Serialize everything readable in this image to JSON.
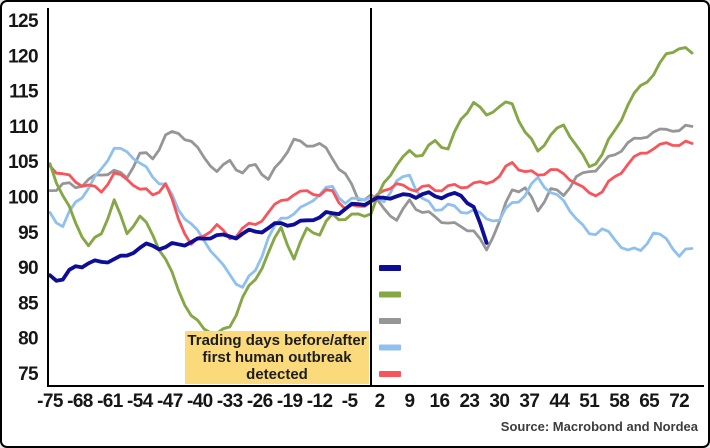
{
  "annotation": {
    "line1": "Trading days before/after",
    "line2": "first human outbreak",
    "line3": "detected"
  },
  "source_text": "Source: Macrobond and Nordea",
  "colors": {
    "background": "#ffffff",
    "axis": "#000000",
    "zero_line": "#000000",
    "annotation_bg": "#fbda7c",
    "annotation_text": "#1d1d1d",
    "tick_label": "#161616",
    "source_text": "#3d3d3d",
    "series_dark_blue": "#0d0d97",
    "series_green": "#86a746",
    "series_gray": "#969696",
    "series_light_blue": "#8fc0ee",
    "series_red": "#f7555b"
  },
  "chart_data": {
    "type": "line",
    "title": "",
    "xlabel": "",
    "ylabel": "",
    "xlim": [
      -77,
      77
    ],
    "ylim": [
      75,
      125
    ],
    "grid": false,
    "legend_position": "middle-right",
    "legend_labels": [
      "",
      "",
      "",
      "",
      ""
    ],
    "zero_line_x": 0,
    "noise_amplitude": 0.38,
    "xticks": [
      -75,
      -68,
      -61,
      -54,
      -47,
      -40,
      -33,
      -26,
      -19,
      -12,
      -5,
      2,
      9,
      16,
      23,
      30,
      37,
      44,
      51,
      58,
      65,
      72
    ],
    "yticks": [
      75,
      80,
      85,
      90,
      95,
      100,
      105,
      110,
      115,
      120,
      125
    ],
    "x": [
      -75,
      -72,
      -69,
      -66,
      -63,
      -60,
      -57,
      -54,
      -51,
      -48,
      -45,
      -42,
      -39,
      -36,
      -33,
      -30,
      -27,
      -24,
      -21,
      -18,
      -15,
      -12,
      -9,
      -6,
      -3,
      0,
      3,
      6,
      9,
      12,
      15,
      18,
      21,
      24,
      27,
      30,
      33,
      36,
      39,
      42,
      45,
      48,
      51,
      54,
      57,
      60,
      63,
      66,
      69,
      72,
      75
    ],
    "series": [
      {
        "name": "gray",
        "color_key": "series_gray",
        "width": 2.8,
        "values": [
          100.9,
          101.9,
          101.3,
          102.5,
          103.1,
          103.8,
          102.7,
          106.2,
          105.4,
          108.8,
          109.0,
          107.9,
          105.6,
          103.6,
          105.2,
          103.4,
          104.6,
          102.5,
          105.1,
          108.2,
          107.2,
          107.6,
          105.4,
          103.3,
          99.6,
          100.3,
          98.4,
          96.7,
          99.6,
          97.8,
          97.2,
          96.3,
          95.8,
          95.2,
          92.5,
          96.5,
          101.0,
          101.3,
          98.0,
          101.2,
          100.2,
          102.9,
          103.6,
          104.7,
          106.0,
          107.7,
          108.3,
          109.2,
          109.6,
          109.4,
          110.0
        ]
      },
      {
        "name": "light-blue",
        "color_key": "series_light_blue",
        "width": 2.8,
        "values": [
          97.8,
          95.8,
          99.3,
          101.2,
          104.0,
          106.9,
          106.4,
          104.8,
          102.8,
          101.8,
          98.2,
          96.2,
          93.8,
          91.4,
          89.0,
          87.2,
          89.6,
          94.2,
          97.0,
          97.6,
          99.0,
          100.3,
          101.5,
          99.1,
          99.8,
          100.0,
          99.3,
          102.3,
          103.1,
          99.8,
          98.1,
          99.0,
          97.8,
          98.2,
          96.9,
          96.7,
          99.2,
          100.2,
          102.8,
          100.6,
          99.5,
          96.9,
          94.8,
          95.5,
          93.9,
          92.5,
          92.4,
          94.9,
          94.1,
          91.6,
          92.7
        ]
      },
      {
        "name": "red",
        "color_key": "series_red",
        "width": 2.8,
        "values": [
          104.4,
          103.3,
          102.1,
          101.7,
          100.7,
          103.4,
          102.5,
          101.1,
          100.3,
          101.9,
          96.9,
          93.3,
          94.5,
          96.1,
          94.1,
          95.6,
          96.1,
          97.8,
          99.5,
          100.3,
          100.9,
          100.2,
          100.9,
          98.3,
          98.7,
          99.3,
          100.9,
          101.9,
          101.1,
          101.5,
          100.9,
          101.6,
          101.3,
          102.0,
          101.9,
          102.9,
          104.9,
          103.6,
          103.1,
          103.9,
          103.3,
          101.9,
          100.6,
          100.7,
          102.9,
          104.6,
          106.2,
          106.8,
          107.7,
          107.3,
          107.6
        ]
      },
      {
        "name": "green",
        "color_key": "series_green",
        "width": 2.9,
        "values": [
          104.7,
          100.2,
          96.3,
          93.1,
          94.8,
          99.6,
          94.8,
          97.3,
          94.6,
          91.2,
          86.8,
          83.2,
          81.3,
          80.7,
          81.6,
          85.8,
          88.3,
          92.1,
          95.7,
          91.2,
          95.6,
          94.6,
          97.6,
          96.8,
          97.6,
          97.6,
          102.0,
          104.5,
          106.6,
          105.9,
          108.0,
          106.8,
          111.0,
          113.4,
          111.6,
          112.8,
          113.2,
          109.2,
          106.5,
          108.8,
          110.2,
          107.3,
          104.3,
          106.0,
          109.5,
          113.0,
          115.8,
          117.3,
          120.3,
          121.0,
          120.4
        ]
      },
      {
        "name": "dark-blue",
        "color_key": "series_dark_blue",
        "width": 3.8,
        "values": [
          88.9,
          88.3,
          90.2,
          90.6,
          90.8,
          91.2,
          91.7,
          92.8,
          93.1,
          92.9,
          93.3,
          93.6,
          94.1,
          94.6,
          94.4,
          94.8,
          95.1,
          95.6,
          96.3,
          96.1,
          96.7,
          97.1,
          97.7,
          98.3,
          99.0,
          99.4,
          99.9,
          100.1,
          100.3,
          100.4,
          100.1,
          100.3,
          100.2,
          98.6,
          93.5,
          null,
          null,
          null,
          null,
          null,
          null,
          null,
          null,
          null,
          null,
          null,
          null,
          null,
          null,
          null,
          null
        ]
      }
    ],
    "legend_order": [
      "dark-blue",
      "green",
      "gray",
      "light-blue",
      "red"
    ]
  }
}
